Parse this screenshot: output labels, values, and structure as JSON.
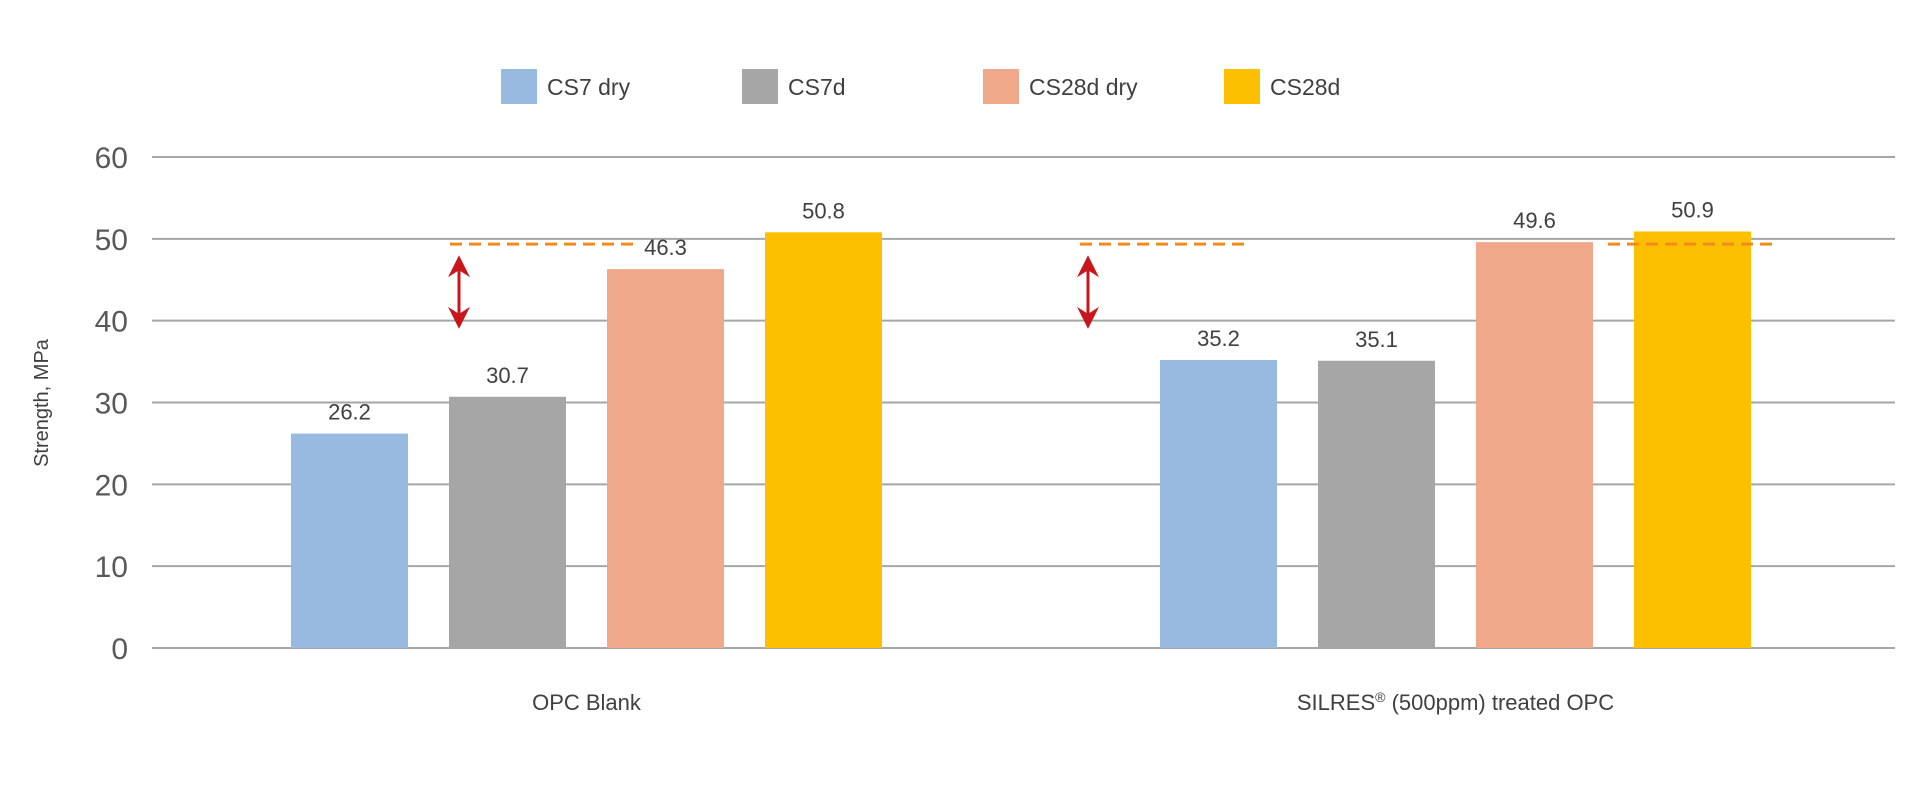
{
  "chart_data": {
    "type": "bar",
    "categories": [
      "OPC Blank",
      "(500ppm) treated OPC"
    ],
    "category_prefix": [
      "",
      "SILRES"
    ],
    "category_sup": [
      "",
      "®"
    ],
    "series": [
      {
        "name": "CS7 dry",
        "color": "#98b9e0",
        "values": [
          26.2,
          35.2
        ]
      },
      {
        "name": "CS7d",
        "color": "#a6a6a6",
        "values": [
          30.7,
          35.1
        ]
      },
      {
        "name": "CS28d dry",
        "color": "#f0a88a",
        "values": [
          46.3,
          49.6
        ]
      },
      {
        "name": "CS28d",
        "color": "#fdc000",
        "values": [
          50.8,
          50.9
        ]
      }
    ],
    "ylabel": "Strength, MPa",
    "ylim": [
      0,
      60
    ],
    "yticks": [
      0,
      10,
      20,
      30,
      40,
      50,
      60
    ],
    "grid": true,
    "legend": "top-center",
    "reference_line": {
      "value": 49.6,
      "color": "#f28b1e",
      "style": "dashed"
    },
    "arrow_color": "#c8161d",
    "arrow_range": [
      39,
      48
    ]
  }
}
